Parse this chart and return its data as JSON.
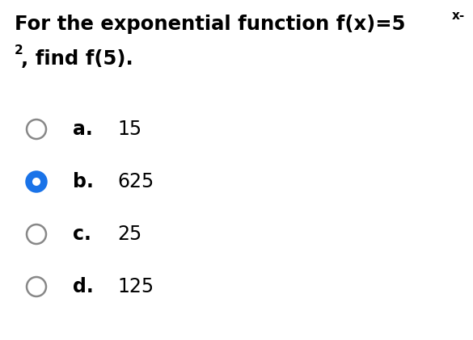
{
  "title_line1": "For the exponential function f(x)=5",
  "title_sup1": "x-",
  "title_line2_sup": "2",
  "title_line2_main": ", find f(5).",
  "options": [
    {
      "label": "a.",
      "value": "15",
      "selected": false
    },
    {
      "label": "b.",
      "value": "625",
      "selected": true
    },
    {
      "label": "c.",
      "value": "25",
      "selected": false
    },
    {
      "label": "d.",
      "value": "125",
      "selected": false
    }
  ],
  "bg_color": "#ffffff",
  "text_color": "#000000",
  "selected_fill": "#1a73e8",
  "selected_border": "#1a73e8",
  "unselected_fill": "#ffffff",
  "unselected_border": "#888888",
  "title_fontsize": 17.5,
  "option_label_fontsize": 17,
  "option_value_fontsize": 17,
  "sup_fontsize": 11,
  "figsize": [
    5.85,
    4.21
  ],
  "dpi": 100
}
